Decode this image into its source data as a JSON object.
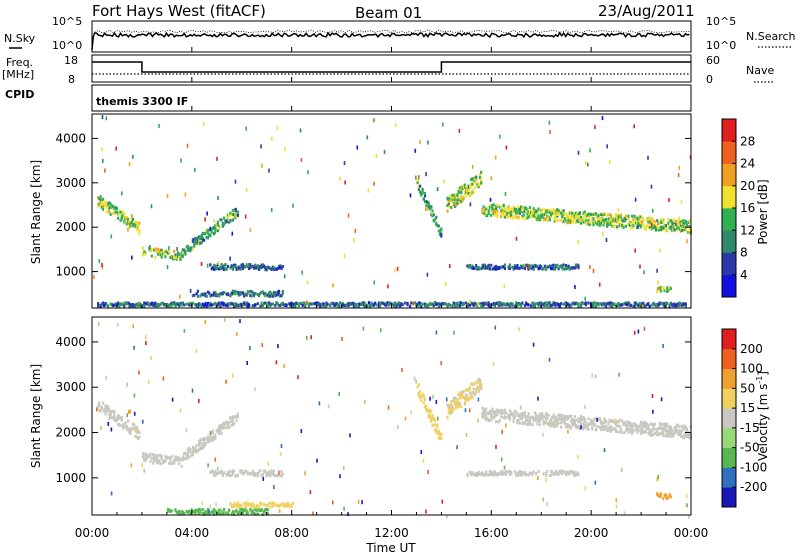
{
  "header": {
    "station": "Fort Hays West (fitACF)",
    "beam": "Beam 01",
    "date": "23/Aug/2011"
  },
  "noise_panel": {
    "left_label": "N.Sky",
    "left_ticks": [
      "10^5",
      "10^0"
    ],
    "right_label": "N.Search",
    "right_ticks": [
      "10^5",
      "10^0"
    ]
  },
  "freq_panel": {
    "left_label": "Freq.",
    "left_unit": "[MHz]",
    "left_ticks": [
      "18",
      "8"
    ],
    "right_label": "Nave",
    "right_ticks": [
      "60",
      "0"
    ]
  },
  "cpid_panel": {
    "label": "CPID",
    "value": "themis 3300 IF"
  },
  "x_axis": {
    "label": "Time UT",
    "ticks": [
      "00:00",
      "04:00",
      "08:00",
      "12:00",
      "16:00",
      "20:00",
      "00:00"
    ]
  },
  "colors": {
    "power": [
      "#1010e0",
      "#2a3aa8",
      "#2e8a6a",
      "#30b050",
      "#f0e030",
      "#f0a020",
      "#f06020",
      "#e02020"
    ],
    "velocity": [
      "#1818b8",
      "#3070c0",
      "#58b850",
      "#98d878",
      "#c8c8c0",
      "#f0d060",
      "#f0a030",
      "#f06020",
      "#e02020"
    ]
  },
  "chart_data": [
    {
      "type": "heatmap",
      "panel": "power",
      "ylabel": "Slant Range [km]",
      "y_ticks": [
        1000,
        2000,
        3000,
        4000
      ],
      "ylim": [
        180,
        4550
      ],
      "xlim_hours": [
        0,
        24
      ],
      "colorbar": {
        "label": "Power [dB]",
        "ticks": [
          "4",
          "8",
          "12",
          "16",
          "20",
          "24",
          "28"
        ],
        "range": [
          0,
          32
        ]
      },
      "echo_bands": [
        {
          "t": [
            0.2,
            1.9
          ],
          "range_start": 2600,
          "range_end": 1950,
          "width": 250,
          "value": 16
        },
        {
          "t": [
            2.0,
            3.6
          ],
          "range_start": 1450,
          "range_end": 1350,
          "width": 200,
          "value": 16
        },
        {
          "t": [
            3.6,
            5.8
          ],
          "range_start": 1450,
          "range_end": 2350,
          "width": 220,
          "value": 12
        },
        {
          "t": [
            4.7,
            7.6
          ],
          "range_start": 1100,
          "range_end": 1100,
          "width": 120,
          "value": 8
        },
        {
          "t": [
            4.0,
            7.6
          ],
          "range_start": 500,
          "range_end": 500,
          "width": 120,
          "value": 8
        },
        {
          "t": [
            0.2,
            23.8
          ],
          "range_start": 260,
          "range_end": 260,
          "width": 80,
          "value": 8
        },
        {
          "t": [
            13.0,
            14.0
          ],
          "range_start": 3000,
          "range_end": 1800,
          "width": 250,
          "value": 12
        },
        {
          "t": [
            14.2,
            15.6
          ],
          "range_start": 2500,
          "range_end": 3100,
          "width": 350,
          "value": 16
        },
        {
          "t": [
            15.6,
            24.0
          ],
          "range_start": 2400,
          "range_end": 2000,
          "width": 280,
          "value": 16
        },
        {
          "t": [
            15.0,
            19.5
          ],
          "range_start": 1100,
          "range_end": 1100,
          "width": 100,
          "value": 8
        },
        {
          "t": [
            22.6,
            23.2
          ],
          "range_start": 600,
          "range_end": 600,
          "width": 120,
          "value": 16
        }
      ]
    },
    {
      "type": "heatmap",
      "panel": "velocity",
      "ylabel": "Slant Range [km]",
      "y_ticks": [
        1000,
        2000,
        3000,
        4000
      ],
      "ylim": [
        180,
        4550
      ],
      "xlim_hours": [
        0,
        24
      ],
      "colorbar": {
        "label": "Velocity [m s^-1]",
        "ticks": [
          "200",
          "100",
          "50",
          "15",
          "-15",
          "-50",
          "-100",
          "-200"
        ],
        "range": [
          -250,
          250
        ]
      },
      "echo_bands": [
        {
          "t": [
            0.2,
            1.9
          ],
          "range_start": 2600,
          "range_end": 1950,
          "width": 250,
          "value": 0
        },
        {
          "t": [
            2.0,
            3.6
          ],
          "range_start": 1450,
          "range_end": 1350,
          "width": 200,
          "value": 0
        },
        {
          "t": [
            3.6,
            5.8
          ],
          "range_start": 1450,
          "range_end": 2350,
          "width": 220,
          "value": 0
        },
        {
          "t": [
            4.7,
            7.6
          ],
          "range_start": 1100,
          "range_end": 1100,
          "width": 120,
          "value": 0
        },
        {
          "t": [
            3.0,
            7.0
          ],
          "range_start": 250,
          "range_end": 250,
          "width": 120,
          "value": -100
        },
        {
          "t": [
            5.5,
            8.0
          ],
          "range_start": 400,
          "range_end": 400,
          "width": 100,
          "value": 50
        },
        {
          "t": [
            13.0,
            14.0
          ],
          "range_start": 3000,
          "range_end": 1800,
          "width": 250,
          "value": 50
        },
        {
          "t": [
            14.2,
            15.6
          ],
          "range_start": 2500,
          "range_end": 3100,
          "width": 350,
          "value": 30
        },
        {
          "t": [
            15.6,
            24.0
          ],
          "range_start": 2400,
          "range_end": 2000,
          "width": 280,
          "value": 0
        },
        {
          "t": [
            15.0,
            19.5
          ],
          "range_start": 1100,
          "range_end": 1100,
          "width": 100,
          "value": 0
        },
        {
          "t": [
            22.6,
            23.2
          ],
          "range_start": 600,
          "range_end": 600,
          "width": 120,
          "value": 100
        }
      ]
    }
  ]
}
